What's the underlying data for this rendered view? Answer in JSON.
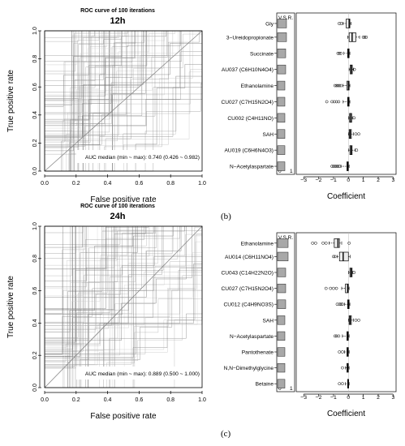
{
  "chart_data": [
    {
      "type": "line",
      "panel": "b-left",
      "title": "ROC curve of 100 iterations",
      "subtitle": "12h",
      "xlabel": "False positive rate",
      "ylabel": "True positive rate",
      "xlim": [
        0,
        1
      ],
      "ylim": [
        0,
        1
      ],
      "ticks": [
        "0.0",
        "0.2",
        "0.4",
        "0.6",
        "0.8",
        "1.0"
      ],
      "diagonal": true,
      "annotation": "AUC median (min ~ max): 0.740 (0.426 ~ 0.982)"
    },
    {
      "type": "box",
      "panel": "b-right",
      "xlabel": "Coefficient",
      "xlim": [
        -3.5,
        3.2
      ],
      "xticks": [
        "-3",
        "-2",
        "-1",
        "0",
        "1",
        "2",
        "3"
      ],
      "vsr_label": "V.S.R.",
      "vsr_axis": [
        "0",
        "1"
      ],
      "series": [
        {
          "name": "Gly",
          "vsr": 0.55,
          "box": [
            -0.15,
            0.05,
            0.1
          ],
          "whisker": [
            -0.35,
            0.18
          ],
          "outliers": [
            -0.62,
            -0.48
          ]
        },
        {
          "name": "3−Ureidopropionate",
          "vsr": 0.55,
          "box": [
            0.05,
            0.25,
            0.5
          ],
          "whisker": [
            -0.05,
            0.75
          ],
          "outliers": [
            1.0,
            1.1,
            1.2
          ]
        },
        {
          "name": "Succinate",
          "vsr": 0.5,
          "box": [
            -0.05,
            0.0,
            0.05
          ],
          "whisker": [
            -0.3,
            0.1
          ],
          "outliers": [
            -0.7,
            -0.6,
            -0.5
          ]
        },
        {
          "name": "AU037 (C6H10N4O4)",
          "vsr": 0.5,
          "box": [
            0.12,
            0.2,
            0.26
          ],
          "whisker": [
            0.05,
            0.35
          ],
          "outliers": [
            0.4
          ]
        },
        {
          "name": "Ethanolamine",
          "vsr": 0.45,
          "box": [
            -0.1,
            0.0,
            0.05
          ],
          "whisker": [
            -0.35,
            0.1
          ],
          "outliers": [
            -0.9,
            -0.8,
            -0.7,
            -0.6,
            -0.5
          ]
        },
        {
          "name": "CU027 (C7H15N2O4)",
          "vsr": 0.45,
          "box": [
            -0.05,
            0.0,
            0.05
          ],
          "whisker": [
            -0.35,
            0.1
          ],
          "outliers": [
            -1.45,
            -1.1,
            -0.95,
            -0.8,
            -0.65
          ]
        },
        {
          "name": "CU002 (C4H11NO)",
          "vsr": 0.45,
          "box": [
            0.08,
            0.15,
            0.22
          ],
          "whisker": [
            0.02,
            0.3
          ],
          "outliers": [
            0.38
          ]
        },
        {
          "name": "SAH",
          "vsr": 0.45,
          "box": [
            0.05,
            0.12,
            0.2
          ],
          "whisker": [
            0.0,
            0.35
          ],
          "outliers": [
            0.5,
            0.7
          ]
        },
        {
          "name": "AU019 (C6H6N4O3)",
          "vsr": 0.45,
          "box": [
            0.1,
            0.18,
            0.25
          ],
          "whisker": [
            0.0,
            0.45
          ],
          "outliers": [
            0.55
          ]
        },
        {
          "name": "N−Acetylaspartate",
          "vsr": 0.45,
          "box": [
            -0.1,
            -0.05,
            0.0
          ],
          "whisker": [
            -0.5,
            0.05
          ],
          "outliers": [
            -1.1,
            -1.0,
            -0.9,
            -0.8,
            -0.7,
            -0.6
          ]
        }
      ]
    },
    {
      "type": "line",
      "panel": "c-left",
      "title": "ROC curve of 100 iterations",
      "subtitle": "24h",
      "xlabel": "False positive rate",
      "ylabel": "True positive rate",
      "xlim": [
        0,
        1
      ],
      "ylim": [
        0,
        1
      ],
      "ticks": [
        "0.0",
        "0.2",
        "0.4",
        "0.6",
        "0.8",
        "1.0"
      ],
      "diagonal": true,
      "annotation": "AUC median (min ~ max): 0.889 (0.500 ~ 1.000)"
    },
    {
      "type": "box",
      "panel": "c-right",
      "xlabel": "Coefficient",
      "xlim": [
        -3.5,
        3.2
      ],
      "xticks": [
        "-3",
        "-2",
        "-1",
        "0",
        "1",
        "2",
        "3"
      ],
      "vsr_label": "V.S.R.",
      "vsr_axis": [
        "0",
        "1"
      ],
      "series": [
        {
          "name": "Ethanolamine",
          "vsr": 0.65,
          "box": [
            -0.95,
            -0.7,
            -0.6
          ],
          "whisker": [
            -1.3,
            -0.45
          ],
          "outliers": [
            -2.4,
            -2.2,
            -1.7,
            -1.5,
            0.05
          ]
        },
        {
          "name": "AU014 (C6H11NO4)",
          "vsr": 0.65,
          "box": [
            -0.6,
            -0.35,
            0.0
          ],
          "whisker": [
            -0.75,
            0.12
          ],
          "outliers": [
            -1.0,
            -0.9
          ]
        },
        {
          "name": "CU043 (C14H22N2O)",
          "vsr": 0.5,
          "box": [
            0.1,
            0.18,
            0.25
          ],
          "whisker": [
            0.02,
            0.3
          ],
          "outliers": [
            0.38
          ]
        },
        {
          "name": "CU027 (C7H15N2O4)",
          "vsr": 0.5,
          "box": [
            -0.2,
            -0.05,
            0.0
          ],
          "whisker": [
            -0.45,
            0.05
          ],
          "outliers": [
            -1.5,
            -1.2,
            -1.0,
            -0.8
          ]
        },
        {
          "name": "CU012 (C4H9NO3S)",
          "vsr": 0.5,
          "box": [
            -0.05,
            0.0,
            0.05
          ],
          "whisker": [
            -0.25,
            0.1
          ],
          "outliers": [
            -0.75,
            -0.6,
            -0.5,
            -0.4
          ]
        },
        {
          "name": "SAH",
          "vsr": 0.45,
          "box": [
            0.05,
            0.12,
            0.2
          ],
          "whisker": [
            0.0,
            0.35
          ],
          "outliers": [
            0.5,
            0.7
          ]
        },
        {
          "name": "N−Acetylaspartate",
          "vsr": 0.45,
          "box": [
            -0.1,
            -0.05,
            0.0
          ],
          "whisker": [
            -0.4,
            0.05
          ],
          "outliers": [
            -0.9,
            -0.8,
            -0.65
          ]
        },
        {
          "name": "Pantothenate",
          "vsr": 0.45,
          "box": [
            -0.1,
            -0.05,
            0.0
          ],
          "whisker": [
            -0.25,
            0.05
          ],
          "outliers": [
            -0.6,
            -0.4
          ]
        },
        {
          "name": "N,N−Dimethylglycine",
          "vsr": 0.45,
          "box": [
            -0.1,
            -0.05,
            0.0
          ],
          "whisker": [
            -0.2,
            0.05
          ],
          "outliers": [
            -0.4
          ]
        },
        {
          "name": "Betaine",
          "vsr": 0.45,
          "box": [
            -0.05,
            -0.02,
            0.0
          ],
          "whisker": [
            -0.2,
            0.05
          ],
          "outliers": [
            -0.6,
            -0.4
          ]
        }
      ]
    }
  ],
  "labels": {
    "panel_b": "(b)",
    "panel_c": "(c)"
  }
}
